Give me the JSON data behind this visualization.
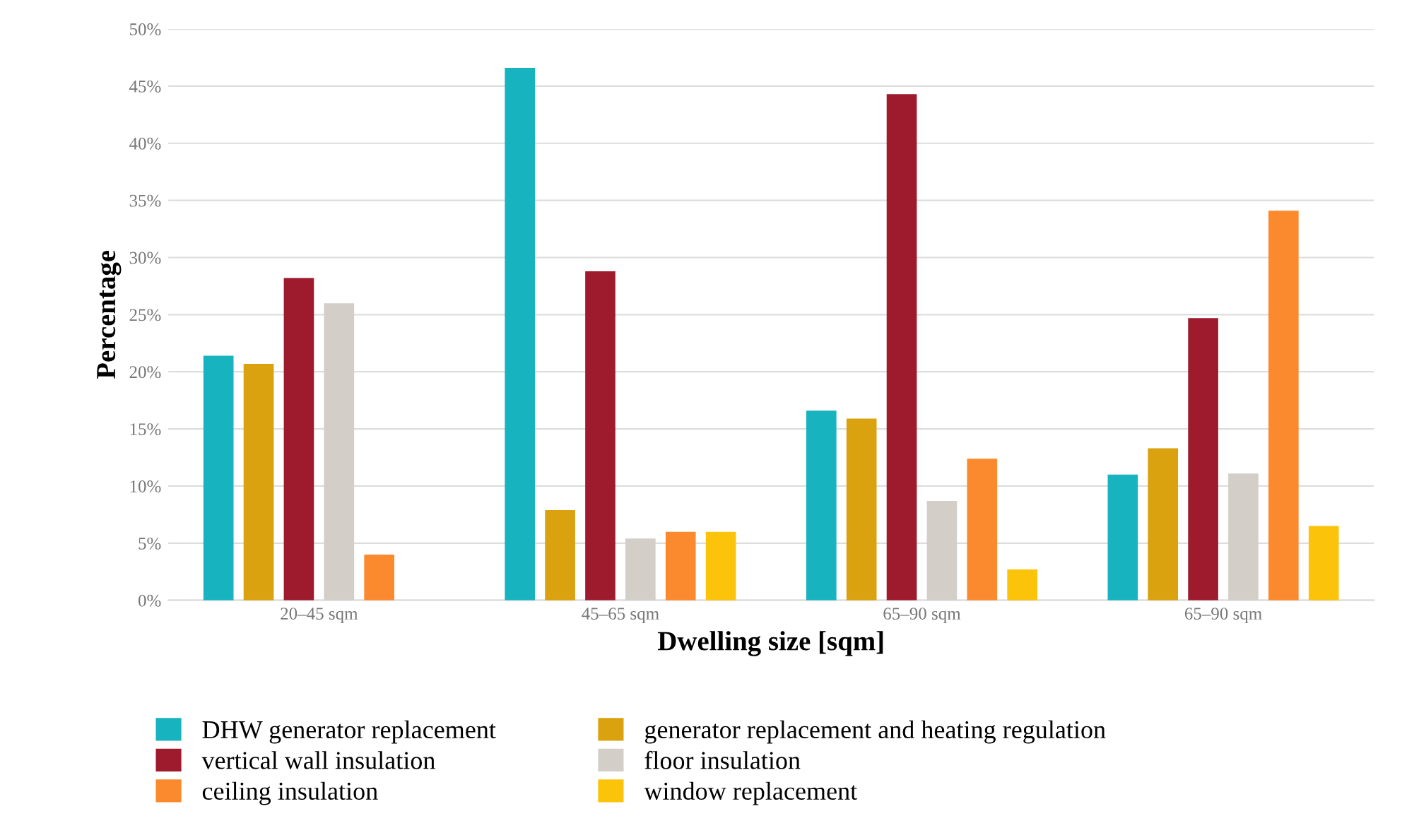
{
  "chart_data": {
    "type": "bar",
    "xlabel": "Dwelling size [sqm]",
    "ylabel": "Percentage",
    "categories": [
      "20–45 sqm",
      "45–65 sqm",
      "65–90 sqm",
      "65–90 sqm"
    ],
    "series": [
      {
        "name": "DHW generator replacement",
        "color": "#17b3bf",
        "values": [
          21.4,
          46.6,
          16.6,
          11.0
        ]
      },
      {
        "name": "generator replacement and heating regulation",
        "color": "#d9a20e",
        "values": [
          20.7,
          7.9,
          15.9,
          13.3
        ]
      },
      {
        "name": "vertical wall insulation",
        "color": "#9e1b2e",
        "values": [
          28.2,
          28.8,
          44.3,
          24.7
        ]
      },
      {
        "name": "floor insulation",
        "color": "#d3cfc8",
        "values": [
          26.0,
          5.4,
          8.7,
          11.1
        ]
      },
      {
        "name": "ceiling insulation",
        "color": "#fb8a2e",
        "values": [
          4.0,
          6.0,
          12.4,
          34.1
        ]
      },
      {
        "name": "window replacement",
        "color": "#fcc30b",
        "values": [
          0,
          6.0,
          2.7,
          6.5
        ]
      }
    ],
    "ylim": [
      0,
      50
    ],
    "yticks": [
      {
        "value": 0,
        "label": "0%"
      },
      {
        "value": 5,
        "label": "5%"
      },
      {
        "value": 10,
        "label": "10%"
      },
      {
        "value": 15,
        "label": "15%"
      },
      {
        "value": 20,
        "label": "20%"
      },
      {
        "value": 25,
        "label": "25%"
      },
      {
        "value": 30,
        "label": "30%"
      },
      {
        "value": 35,
        "label": "35%"
      },
      {
        "value": 40,
        "label": "40%"
      },
      {
        "value": 45,
        "label": "45%"
      },
      {
        "value": 50,
        "label": "50%"
      }
    ],
    "grid": "y",
    "legend": "bottom"
  }
}
